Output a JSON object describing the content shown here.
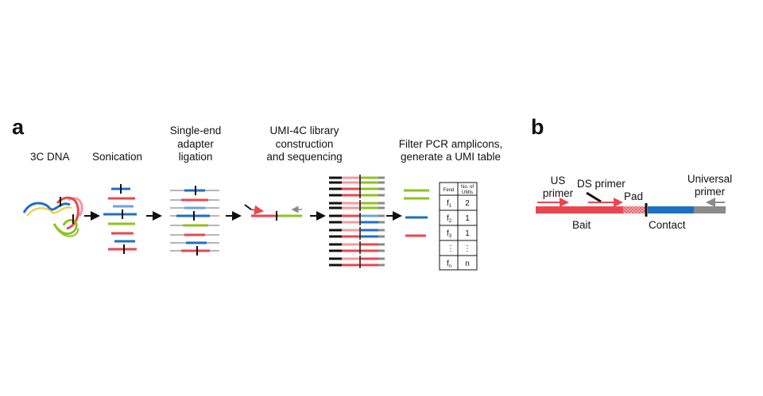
{
  "panel_a": {
    "letter": "a",
    "steps": {
      "dna": "3C DNA",
      "sonication": "Sonication",
      "adapter_1": "Single-end",
      "adapter_2": "adapter",
      "adapter_3": "ligation",
      "library_1": "UMI-4C library",
      "library_2": "construction",
      "library_3": "and sequencing",
      "filter_1": "Filter PCR amplicons,",
      "filter_2": "generate a UMI table"
    },
    "table": {
      "header_fend": "Fend",
      "header_umis_1": "No. of",
      "header_umis_2": "UMIs",
      "rows": [
        {
          "fend": "f",
          "sub": "1",
          "umis": "2"
        },
        {
          "fend": "f",
          "sub": "2",
          "umis": "1"
        },
        {
          "fend": "f",
          "sub": "3",
          "umis": "1"
        },
        {
          "fend": "⋮",
          "sub": "",
          "umis": "⋮"
        },
        {
          "fend": "f",
          "sub": "n",
          "umis": "n"
        }
      ]
    }
  },
  "panel_b": {
    "letter": "b",
    "us_primer_1": "US",
    "us_primer_2": "primer",
    "ds_primer": "DS primer",
    "pad": "Pad",
    "universal_1": "Universal",
    "universal_2": "primer",
    "bait": "Bait",
    "contact": "Contact"
  },
  "colors": {
    "red": "#e8474f",
    "pink": "#f29aa0",
    "blue": "#1d6fc4",
    "light_blue": "#6aa3d8",
    "green": "#8fc21f",
    "yellow": "#f2c531",
    "gray": "#8a8a8a",
    "black": "#111111"
  }
}
